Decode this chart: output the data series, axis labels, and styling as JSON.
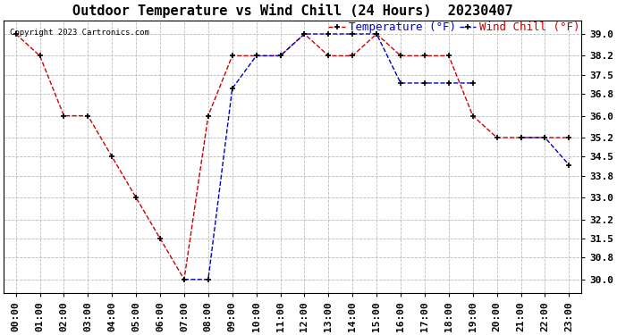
{
  "title": "Outdoor Temperature vs Wind Chill (24 Hours)  20230407",
  "copyright": "Copyright 2023 Cartronics.com",
  "legend_wind_chill": "Wind Chill (°F)",
  "legend_temperature": "Temperature (°F)",
  "x_labels": [
    "00:00",
    "01:00",
    "02:00",
    "03:00",
    "04:00",
    "05:00",
    "06:00",
    "07:00",
    "08:00",
    "09:00",
    "10:00",
    "11:00",
    "12:00",
    "13:00",
    "14:00",
    "15:00",
    "16:00",
    "17:00",
    "18:00",
    "19:00",
    "20:00",
    "21:00",
    "22:00",
    "23:00"
  ],
  "temperature": [
    39.0,
    38.2,
    36.0,
    36.0,
    34.5,
    33.0,
    31.5,
    30.0,
    36.0,
    38.2,
    38.2,
    38.2,
    39.0,
    38.2,
    38.2,
    39.0,
    38.2,
    38.2,
    38.2,
    36.0,
    35.2,
    35.2,
    35.2,
    35.2
  ],
  "wind_chill": [
    null,
    null,
    null,
    null,
    null,
    null,
    null,
    30.0,
    30.0,
    37.0,
    38.2,
    38.2,
    39.0,
    39.0,
    39.0,
    39.0,
    37.2,
    37.2,
    37.2,
    37.2,
    null,
    35.2,
    35.2,
    34.2
  ],
  "ylim_min": 29.5,
  "ylim_max": 39.5,
  "yticks": [
    30.0,
    30.8,
    31.5,
    32.2,
    33.0,
    33.8,
    34.5,
    35.2,
    36.0,
    36.8,
    37.5,
    38.2,
    39.0
  ],
  "temp_color": "#cc0000",
  "wind_chill_color": "#0000cc",
  "background_color": "#ffffff",
  "grid_color": "#bbbbbb",
  "title_fontsize": 11,
  "axis_fontsize": 8,
  "legend_fontsize": 9,
  "marker_color": "#000000"
}
